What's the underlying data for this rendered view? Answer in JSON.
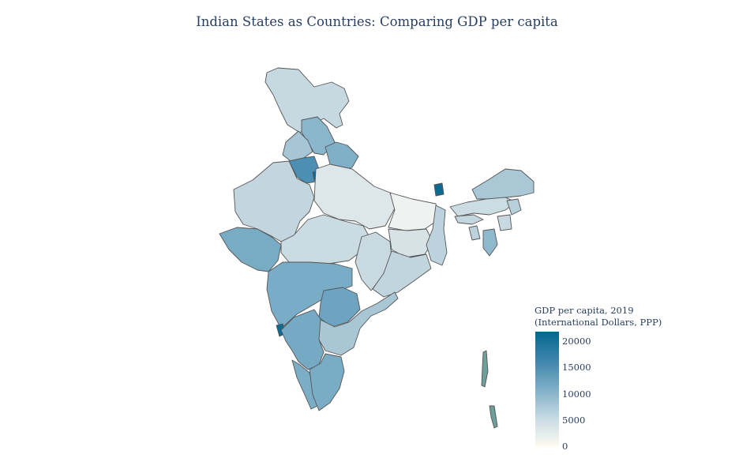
{
  "title": "Indian States as Countries: Comparing GDP per capita",
  "colorbar": {
    "title_line1": "GDP per capita, 2019",
    "title_line2": "(International Dollars, PPP)",
    "min": 0,
    "max": 22000,
    "ticks": [
      "0",
      "5000",
      "10000",
      "15000",
      "20000"
    ],
    "colors": [
      "#fffbf0",
      "#c6dbe4",
      "#7fafc7",
      "#3f85ac",
      "#03668f"
    ]
  },
  "chart_data": {
    "type": "choropleth",
    "variable": "GDP per capita, 2019 (International Dollars, PPP)",
    "colorscale_range": [
      0,
      22000
    ]
  }
}
